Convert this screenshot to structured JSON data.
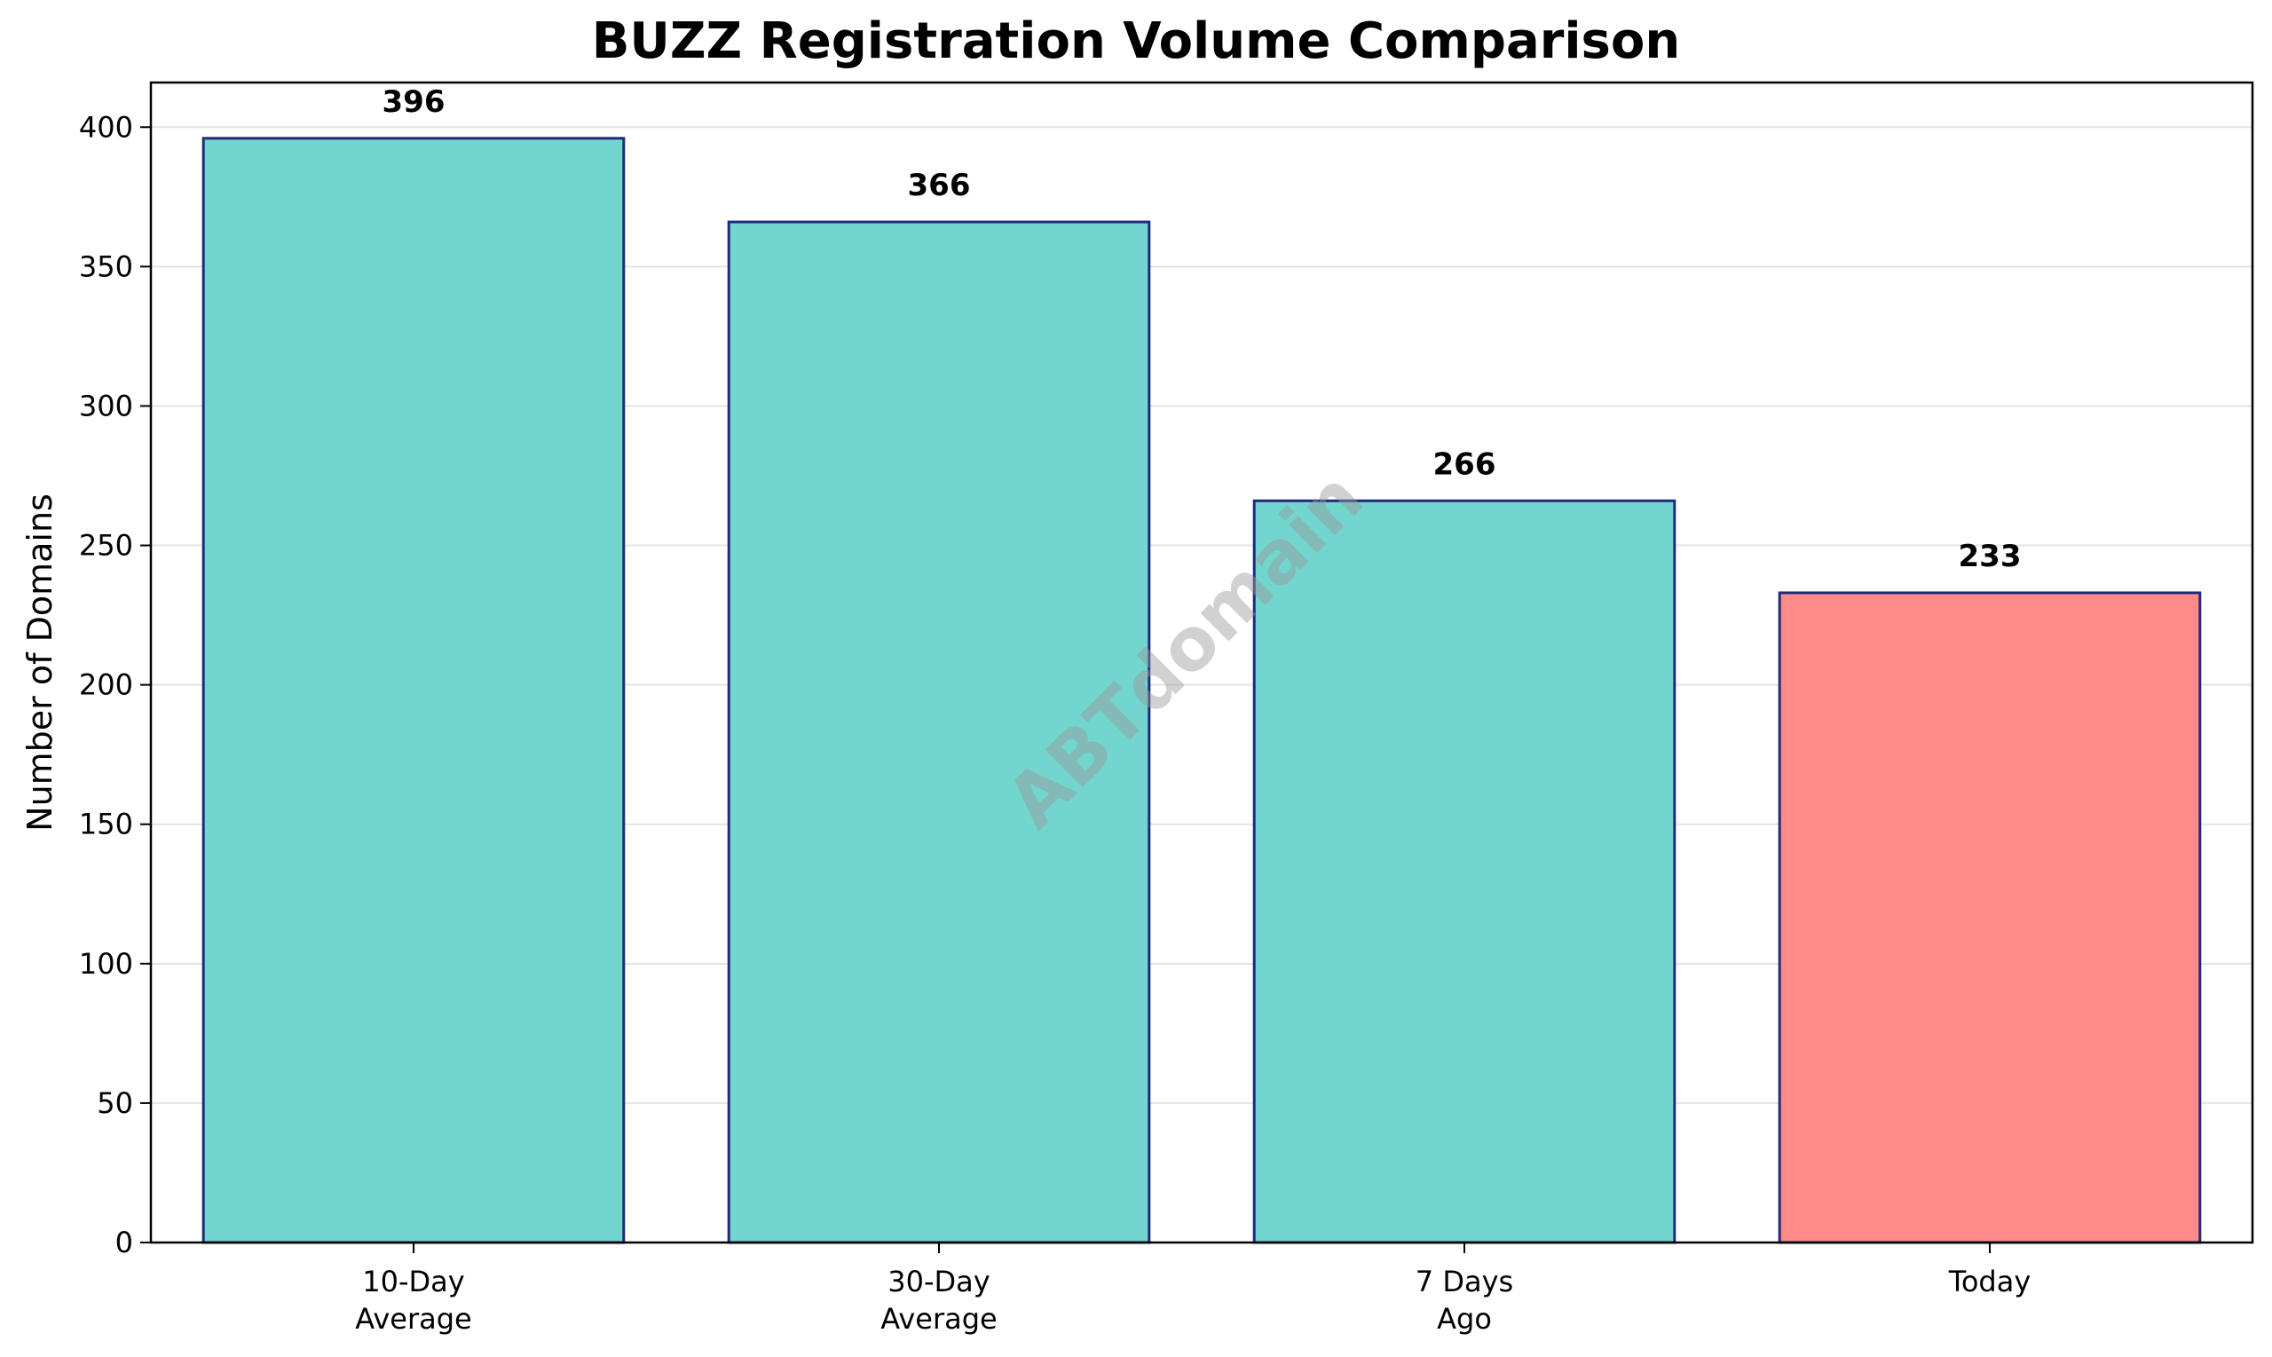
{
  "chart_data": {
    "type": "bar",
    "title": "BUZZ Registration Volume Comparison",
    "ylabel": "Number of Domains",
    "xlabel": "",
    "categories": [
      [
        "10-Day",
        "Average"
      ],
      [
        "30-Day",
        "Average"
      ],
      [
        "7 Days",
        "Ago"
      ],
      [
        "Today"
      ]
    ],
    "values": [
      396,
      366,
      266,
      233
    ],
    "value_labels": [
      "396",
      "366",
      "266",
      "233"
    ],
    "bar_colors": [
      "#72d6cf",
      "#72d6cf",
      "#72d6cf",
      "#ff8a8a"
    ],
    "bar_edge_color": "#1f2a7a",
    "ylim": [
      0,
      416
    ],
    "yticks": [
      0,
      50,
      100,
      150,
      200,
      250,
      300,
      350,
      400
    ],
    "grid": "horizontal",
    "legend": "none"
  },
  "watermark": {
    "text": "ABTdomain",
    "color": "#9a9a9a"
  }
}
